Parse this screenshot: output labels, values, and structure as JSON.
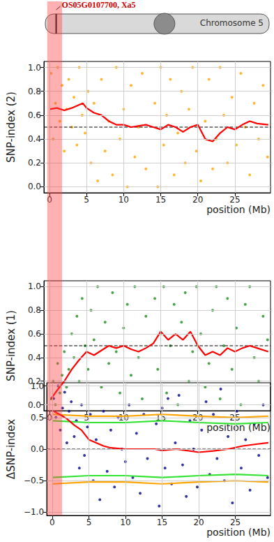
{
  "ideogram": {
    "title": "Chromosome 5",
    "gene_label": "OS05G0107700, Xa5",
    "gene_position": 0.9,
    "centromere": 15.5,
    "label_color": "#cc0000"
  },
  "highlight": [
    -0.3,
    1.7
  ],
  "chart_data": [
    {
      "type": "scatter",
      "y_label": "SNP-index (2)",
      "x_label": "position (Mb)",
      "xlim": [
        -0.75,
        29.8
      ],
      "xticks": [
        0,
        5,
        10,
        15,
        20,
        25
      ],
      "ylim": [
        -0.05,
        1.05
      ],
      "yticks": [
        {
          "value": 0,
          "label": "0.0"
        },
        {
          "value": 0.2,
          "label": "0.2"
        },
        {
          "value": 0.4,
          "label": "0.4"
        },
        {
          "value": 0.6,
          "label": "0.6"
        },
        {
          "value": 0.8,
          "label": "0.8"
        },
        {
          "value": 1,
          "label": "1.0"
        }
      ],
      "grid": true,
      "series": [
        {
          "type": "scatter",
          "color": "#ffa500",
          "x": [
            0.2,
            0.5,
            0.8,
            1.1,
            1.4,
            1.7,
            2.0,
            2.3,
            2.6,
            3.0,
            3.3,
            3.7,
            4.0,
            4.4,
            4.8,
            5.2,
            5.6,
            6.0,
            6.5,
            7.0,
            7.5,
            8.0,
            8.5,
            9.0,
            9.5,
            10.0,
            10.5,
            11.0,
            11.5,
            12.0,
            12.5,
            13.0,
            14.2,
            14.6,
            15.0,
            15.4,
            15.8,
            16.3,
            16.8,
            17.3,
            17.8,
            18.3,
            18.8,
            19.3,
            19.8,
            20.4,
            21.0,
            21.5,
            22.0,
            22.5,
            23.0,
            23.5,
            24.0,
            24.6,
            25.2,
            25.8,
            26.4,
            27.0,
            27.6,
            28.2,
            28.8,
            29.4
          ],
          "values": [
            0.95,
            0.4,
            0.7,
            1.0,
            0.55,
            0.85,
            0.3,
            0.65,
            0.9,
            0.5,
            0.75,
            0.35,
            1.0,
            0.6,
            0.45,
            0.8,
            0.2,
            0.7,
            0.05,
            0.9,
            0.3,
            0.55,
            0.1,
            1.0,
            0.4,
            0.65,
            0.0,
            0.85,
            0.25,
            0.5,
            0.95,
            0.15,
            0.7,
            0.0,
            1.0,
            0.35,
            0.6,
            0.9,
            0.1,
            0.45,
            0.8,
            0.2,
            0.65,
            1.0,
            0.3,
            0.05,
            0.55,
            0.9,
            0.15,
            0.4,
            1.0,
            0.6,
            0.2,
            0.75,
            0.35,
            0.95,
            0.5,
            0.1,
            0.7,
            0.4,
            0.85,
            0.25
          ]
        },
        {
          "type": "line",
          "color": "#000000",
          "line_style": "dashed",
          "x": [
            -0.75,
            29.8
          ],
          "values": [
            0.5,
            0.5
          ]
        },
        {
          "type": "line",
          "color": "#ff0000",
          "x": [
            0,
            1,
            2,
            3,
            4.5,
            5,
            6,
            7,
            8,
            9,
            10,
            11,
            12,
            13,
            14,
            15,
            16,
            17,
            18,
            19,
            20,
            21,
            22,
            23,
            24,
            25,
            26,
            27,
            28,
            29.5
          ],
          "values": [
            0.65,
            0.66,
            0.64,
            0.66,
            0.7,
            0.66,
            0.62,
            0.6,
            0.55,
            0.52,
            0.52,
            0.5,
            0.51,
            0.52,
            0.5,
            0.48,
            0.52,
            0.5,
            0.46,
            0.5,
            0.52,
            0.4,
            0.38,
            0.45,
            0.5,
            0.48,
            0.52,
            0.55,
            0.53,
            0.52
          ]
        }
      ]
    },
    {
      "type": "scatter",
      "y_label": "SNP-index (1)",
      "x_label": "position (Mb)",
      "xlim": [
        -0.75,
        29.8
      ],
      "xticks": [
        0,
        5,
        10,
        15,
        20,
        25
      ],
      "ylim": [
        -0.05,
        1.05
      ],
      "yticks": [
        {
          "value": 0,
          "label": "0.0"
        },
        {
          "value": 0.2,
          "label": "0.2"
        },
        {
          "value": 0.4,
          "label": "0.4"
        },
        {
          "value": 0.6,
          "label": "0.6"
        },
        {
          "value": 0.8,
          "label": "0.8"
        },
        {
          "value": 1,
          "label": "1.0"
        }
      ],
      "grid": true,
      "series": [
        {
          "type": "scatter",
          "color": "#1e8c1e",
          "x": [
            0.2,
            0.5,
            0.8,
            1.1,
            1.4,
            1.7,
            2.0,
            2.3,
            2.6,
            3.0,
            3.3,
            3.7,
            4.0,
            4.4,
            4.8,
            5.2,
            5.6,
            6.0,
            6.5,
            7.0,
            7.5,
            8.0,
            8.5,
            9.0,
            9.5,
            10.0,
            10.5,
            11.0,
            11.5,
            12.0,
            12.5,
            13.0,
            14.2,
            14.6,
            15.0,
            15.4,
            15.8,
            16.3,
            16.8,
            17.3,
            17.8,
            18.3,
            18.8,
            19.3,
            19.8,
            20.4,
            21.0,
            21.5,
            22.0,
            22.5,
            23.0,
            23.5,
            24.0,
            24.6,
            25.2,
            25.8,
            26.4,
            27.0,
            27.6,
            28.2,
            28.8,
            29.4
          ],
          "values": [
            0.05,
            0.2,
            0.0,
            0.35,
            0.1,
            0.25,
            0.45,
            0.15,
            0.3,
            0.6,
            0.4,
            0.75,
            0.2,
            0.9,
            0.5,
            0.3,
            0.8,
            0.55,
            1.0,
            0.15,
            0.7,
            0.35,
            0.95,
            0.45,
            0.1,
            0.65,
            0.85,
            0.25,
            1.0,
            0.4,
            0.05,
            0.75,
            0.9,
            0.3,
            0.6,
            1.0,
            0.1,
            0.5,
            0.85,
            0.0,
            0.7,
            0.95,
            0.2,
            0.45,
            1.0,
            0.6,
            0.15,
            0.35,
            0.8,
            1.0,
            0.05,
            0.5,
            0.9,
            0.3,
            0.65,
            0.0,
            0.85,
            1.0,
            0.4,
            0.2,
            0.75,
            0.55
          ]
        },
        {
          "type": "line",
          "color": "#000000",
          "line_style": "dashed",
          "x": [
            -0.75,
            29.8
          ],
          "values": [
            0.5,
            0.5
          ]
        },
        {
          "type": "line",
          "color": "#ff0000",
          "x": [
            0.2,
            1,
            2,
            3,
            4,
            5,
            6,
            7,
            8,
            9,
            10,
            11,
            12,
            13,
            14,
            15,
            16,
            17,
            18,
            19,
            20,
            21,
            22,
            23,
            24,
            25,
            26,
            27,
            28,
            29.5
          ],
          "values": [
            0.05,
            0.12,
            0.2,
            0.3,
            0.38,
            0.45,
            0.42,
            0.46,
            0.5,
            0.48,
            0.5,
            0.47,
            0.45,
            0.48,
            0.52,
            0.62,
            0.55,
            0.6,
            0.55,
            0.62,
            0.5,
            0.42,
            0.45,
            0.42,
            0.48,
            0.45,
            0.48,
            0.5,
            0.48,
            0.45
          ]
        }
      ]
    },
    {
      "type": "scatter",
      "y_label": "ΔSNP-index",
      "x_label": "position (Mb)",
      "xlim": [
        -0.75,
        29.8
      ],
      "xticks": [
        0,
        5,
        10,
        15,
        20,
        25
      ],
      "ylim": [
        -1.05,
        1.05
      ],
      "yticks": [
        {
          "value": -1,
          "label": "−1.0"
        },
        {
          "value": -0.5,
          "label": "−0.5"
        },
        {
          "value": 0,
          "label": "0.0"
        },
        {
          "value": 0.5,
          "label": "0.5"
        },
        {
          "value": 1,
          "label": "1.0"
        }
      ],
      "grid": true,
      "series": [
        {
          "type": "scatter",
          "color": "#00008b",
          "x": [
            0.2,
            0.5,
            0.8,
            1.1,
            1.4,
            1.7,
            2.0,
            2.3,
            2.6,
            3.0,
            3.3,
            3.7,
            4.0,
            4.4,
            4.8,
            5.2,
            5.6,
            6.0,
            6.5,
            7.0,
            7.5,
            8.0,
            8.5,
            9.0,
            9.5,
            10.0,
            10.5,
            11.0,
            11.5,
            12.0,
            12.5,
            13.0,
            14.2,
            14.6,
            15.0,
            15.4,
            15.8,
            16.3,
            16.8,
            17.3,
            17.8,
            18.3,
            18.8,
            19.3,
            19.8,
            20.4,
            21.0,
            21.5,
            22.0,
            22.5,
            23.0,
            23.5,
            24.0,
            24.6,
            25.2,
            25.8,
            26.4,
            27.0,
            27.6,
            28.2,
            28.8,
            29.4
          ],
          "values": [
            0.8,
            0.5,
            1.0,
            0.3,
            0.65,
            0.9,
            0.1,
            0.6,
            0.75,
            0.2,
            0.45,
            -0.3,
            0.7,
            -0.1,
            0.35,
            0.55,
            -0.5,
            0.15,
            -0.8,
            0.6,
            -0.35,
            0.3,
            -0.6,
            0.5,
            0.0,
            -0.2,
            0.7,
            -0.45,
            0.25,
            -0.7,
            0.55,
            -0.15,
            0.4,
            -0.9,
            0.65,
            -0.3,
            0.8,
            -0.55,
            0.1,
            0.85,
            -0.25,
            -0.75,
            0.45,
            0.0,
            -0.6,
            0.3,
            0.75,
            -0.4,
            0.55,
            -0.15,
            0.95,
            -0.5,
            0.2,
            -0.85,
            0.6,
            -0.3,
            0.15,
            -0.65,
            0.4,
            -0.1,
            0.7,
            -0.45
          ]
        },
        {
          "type": "line",
          "color": "#000000",
          "line_style": "dashed",
          "x": [
            -0.75,
            29.8
          ],
          "values": [
            0,
            0
          ]
        },
        {
          "type": "line",
          "color": "#ffa500",
          "x": [
            0,
            5,
            10,
            15,
            20,
            25,
            29.5
          ],
          "values": [
            0.55,
            0.52,
            0.52,
            0.55,
            0.52,
            0.5,
            0.52
          ]
        },
        {
          "type": "line",
          "color": "#ffa500",
          "x": [
            0,
            5,
            10,
            15,
            20,
            25,
            29.5
          ],
          "values": [
            -0.55,
            -0.52,
            -0.52,
            -0.55,
            -0.52,
            -0.5,
            -0.52
          ]
        },
        {
          "type": "line",
          "color": "#32e432",
          "x": [
            0,
            5,
            10,
            15,
            20,
            25,
            29.5
          ],
          "values": [
            0.45,
            0.42,
            0.42,
            0.45,
            0.42,
            0.4,
            0.42
          ]
        },
        {
          "type": "line",
          "color": "#32e432",
          "x": [
            0,
            5,
            10,
            15,
            20,
            25,
            29.5
          ],
          "values": [
            -0.45,
            -0.42,
            -0.42,
            -0.45,
            -0.42,
            -0.4,
            -0.42
          ]
        },
        {
          "type": "line",
          "color": "#ff0000",
          "x": [
            0.2,
            1,
            2,
            3,
            4,
            5,
            6,
            7,
            8,
            10,
            12,
            14,
            15,
            17,
            20,
            22,
            24,
            26,
            28,
            29.5
          ],
          "values": [
            0.6,
            0.55,
            0.48,
            0.38,
            0.3,
            0.15,
            0.1,
            0.05,
            0.02,
            0.0,
            0.0,
            0.0,
            -0.02,
            0.0,
            -0.05,
            -0.03,
            0.0,
            0.05,
            0.08,
            0.1
          ]
        }
      ]
    }
  ]
}
